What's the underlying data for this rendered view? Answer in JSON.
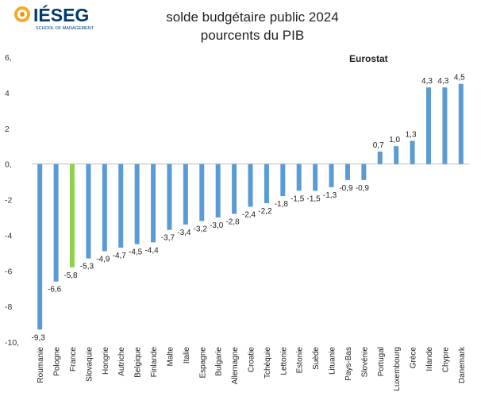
{
  "logo": {
    "name": "IÉSEG",
    "tagline": "SCHOOL OF MANAGEMENT"
  },
  "source": "Eurostat",
  "chart_data": {
    "type": "bar",
    "title": "solde budgétaire public 2024",
    "subtitle": "pourcents du PIB",
    "categories": [
      "Roumanie",
      "Pologne",
      "France",
      "Slovaquie",
      "Hongrie",
      "Autriche",
      "Belgique",
      "Finlande",
      "Malte",
      "Italie",
      "Espagne",
      "Bulgarie",
      "Allemagne",
      "Croatie",
      "Tchéquie",
      "Lettonie",
      "Estonie",
      "Suède",
      "Lituanie",
      "Pays-Bas",
      "Slovénie",
      "Portugal",
      "Luxembourg",
      "Grèce",
      "Irlande",
      "Chypre",
      "Danemark"
    ],
    "values": [
      -9.3,
      -6.6,
      -5.8,
      -5.3,
      -4.9,
      -4.7,
      -4.5,
      -4.4,
      -3.7,
      -3.4,
      -3.2,
      -3.0,
      -2.8,
      -2.4,
      -2.2,
      -1.8,
      -1.5,
      -1.5,
      -1.3,
      -0.9,
      -0.9,
      0.7,
      1.0,
      1.3,
      4.3,
      4.3,
      4.5
    ],
    "data_labels": [
      "-9,3",
      "-6,6",
      "-5,8",
      "-5,3",
      "-4,9",
      "-4,7",
      "-4,5",
      "-4,4",
      "-3,7",
      "-3,4",
      "-3,2",
      "-3,0",
      "-2,8",
      "-2,4",
      "-2,2",
      "-1,8",
      "-1,5",
      "-1,5",
      "-1,3",
      "-0,9",
      "-0,9",
      "0,7",
      "1,0",
      "1,3",
      "4,3",
      "4,3",
      "4,5"
    ],
    "highlight_category": "France",
    "colors": {
      "default": "#5b9bd5",
      "highlight": "#92d050",
      "grid": "#d9d9d9"
    },
    "ylim": [
      -10,
      6
    ],
    "yticks": [
      6,
      4,
      2,
      0,
      -2,
      -4,
      -6,
      -8,
      -10
    ],
    "ytick_labels": [
      "6,",
      "4",
      "2",
      "0,",
      "-2",
      "-4",
      "-6",
      "-8",
      "-10,"
    ],
    "xlabel": "",
    "ylabel": "",
    "grid": false
  }
}
